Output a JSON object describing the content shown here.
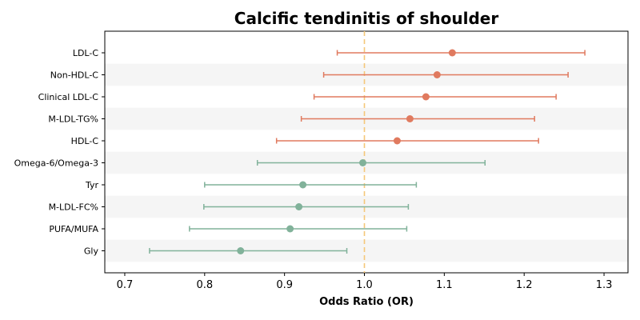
{
  "chart_data": {
    "type": "forest",
    "title": "Calcific tendinitis of shoulder",
    "xlabel": "Odds Ratio (OR)",
    "ylabel": "",
    "xlim": [
      0.675,
      1.33
    ],
    "xticks": [
      "0.7",
      "0.8",
      "0.9",
      "1.0",
      "1.1",
      "1.2",
      "1.3"
    ],
    "reference_line": 1.0,
    "grid": false,
    "colors": {
      "risk": "#e07a5f",
      "protective": "#81b29a",
      "reference": "#f5c778",
      "band": "#f5f5f5"
    },
    "categories": [
      "LDL-C",
      "Non-HDL-C",
      "Clinical LDL-C",
      "M-LDL-TG%",
      "HDL-C",
      "Omega-6/Omega-3",
      "Tyr",
      "M-LDL-FC%",
      "PUFA/MUFA",
      "Gly"
    ],
    "series": [
      {
        "or": [
          1.11,
          1.091,
          1.077,
          1.057,
          1.041,
          0.998,
          0.923,
          0.918,
          0.907,
          0.845
        ],
        "lower": [
          0.966,
          0.949,
          0.937,
          0.921,
          0.89,
          0.866,
          0.8,
          0.799,
          0.781,
          0.731
        ],
        "upper": [
          1.276,
          1.255,
          1.24,
          1.213,
          1.218,
          1.151,
          1.065,
          1.055,
          1.053,
          0.978
        ],
        "group": [
          "risk",
          "risk",
          "risk",
          "risk",
          "risk",
          "protective",
          "protective",
          "protective",
          "protective",
          "protective"
        ]
      }
    ]
  }
}
